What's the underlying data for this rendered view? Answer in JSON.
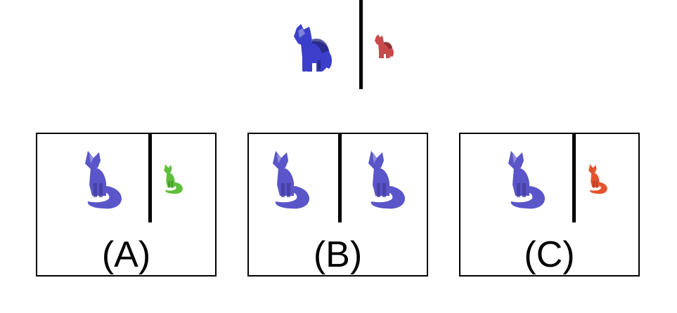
{
  "question": {
    "left_animal": "cat-icon",
    "left_color": "#3b3fc9",
    "right_animal": "cat-icon",
    "right_color": "#c94a4a"
  },
  "options": [
    {
      "label": "(A)",
      "left_animal": "fox-icon",
      "left_color": "#5a55c8",
      "right_animal": "fox-icon",
      "right_color": "#5fbf3a"
    },
    {
      "label": "(B)",
      "left_animal": "fox-icon",
      "left_color": "#5a55c8",
      "right_animal": "fox-icon",
      "right_color": "#5a55c8"
    },
    {
      "label": "(C)",
      "left_animal": "fox-icon",
      "left_color": "#5a55c8",
      "right_animal": "fox-icon",
      "right_color": "#e2552f"
    }
  ]
}
